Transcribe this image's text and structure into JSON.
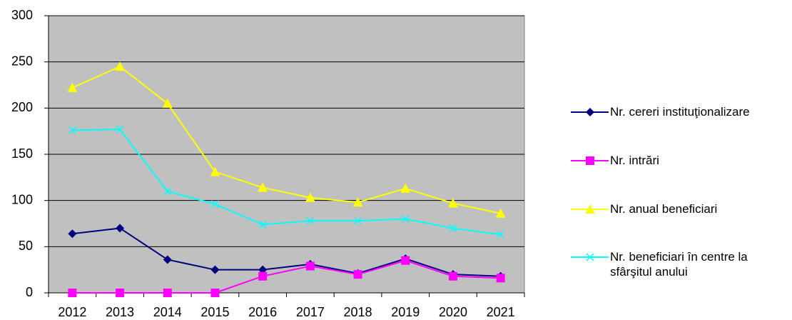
{
  "chart_data": {
    "type": "line",
    "categories": [
      "2012",
      "2013",
      "2014",
      "2015",
      "2016",
      "2017",
      "2018",
      "2019",
      "2020",
      "2021"
    ],
    "series": [
      {
        "name": "Nr. cereri instituţionalizare",
        "color": "#000080",
        "marker": "diamond",
        "values": [
          64,
          70,
          36,
          25,
          25,
          31,
          21,
          37,
          20,
          18
        ]
      },
      {
        "name": "Nr. intrări",
        "color": "#ff00ff",
        "marker": "square",
        "values": [
          0,
          0,
          0,
          0,
          18,
          29,
          20,
          35,
          18,
          16
        ]
      },
      {
        "name": "Nr. anual beneficiari",
        "color": "#ffff00",
        "marker": "triangle",
        "values": [
          222,
          245,
          205,
          131,
          114,
          103,
          98,
          113,
          97,
          86
        ]
      },
      {
        "name": "Nr. beneficiari în centre la sfârşitul anului",
        "color": "#00ffff",
        "marker": "x",
        "values": [
          176,
          177,
          110,
          96,
          74,
          78,
          78,
          80,
          70,
          63
        ]
      }
    ],
    "ylim": [
      0,
      300
    ],
    "yticks": [
      0,
      50,
      100,
      150,
      200,
      250,
      300
    ],
    "grid": true,
    "plot_background": "#c0c0c0",
    "legend": "right"
  }
}
